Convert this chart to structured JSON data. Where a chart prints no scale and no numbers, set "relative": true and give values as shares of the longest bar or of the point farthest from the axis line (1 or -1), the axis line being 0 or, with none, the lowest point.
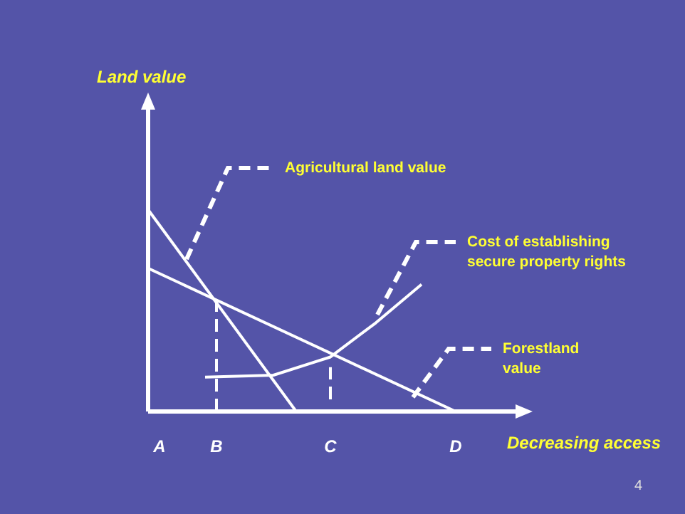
{
  "chart_data": {
    "type": "line",
    "relative": true,
    "xlabel": "Decreasing access",
    "marker": "none",
    "categories": [
      null,
      "A",
      null,
      null,
      null,
      null,
      "B",
      null,
      null,
      null,
      null,
      null,
      null,
      null,
      null,
      null,
      "C",
      null,
      null,
      null,
      null,
      null,
      null,
      null,
      null,
      null,
      null,
      "D",
      null,
      null,
      null,
      null,
      null
    ],
    "series": [
      {
        "color": "#ffffff",
        "values": [
          1,
          null,
          null,
          null,
          null,
          null,
          null,
          null,
          null,
          null,
          null,
          null,
          null,
          0,
          null,
          null,
          null,
          null,
          null,
          null,
          null,
          null,
          null,
          null,
          null,
          null,
          null,
          null,
          null,
          null,
          null,
          null,
          null
        ]
      },
      {
        "color": "#ffffff",
        "values": [
          0.71,
          null,
          null,
          null,
          null,
          null,
          null,
          null,
          null,
          null,
          null,
          null,
          null,
          null,
          null,
          null,
          null,
          null,
          null,
          null,
          null,
          null,
          null,
          null,
          null,
          null,
          null,
          0,
          null,
          null,
          null,
          null,
          null
        ]
      },
      {
        "color": "#ffffff",
        "values": [
          null,
          null,
          null,
          null,
          null,
          0.17,
          null,
          null,
          null,
          null,
          null,
          0.18,
          null,
          null,
          null,
          null,
          0.27,
          null,
          null,
          null,
          0.44,
          null,
          null,
          null,
          0.63,
          null,
          null,
          null,
          null,
          null,
          null,
          null,
          null
        ]
      },
      {
        "color": "#ffffff",
        "line_style": "dashed",
        "x": [
          "B",
          "B"
        ],
        "values": [
          0,
          0.55
        ]
      },
      {
        "color": "#ffffff",
        "line_style": "dashed",
        "x": [
          "C",
          "C"
        ],
        "values": [
          0.06,
          0.22
        ]
      }
    ],
    "annotations": [
      "Land value",
      "Agricultural land value",
      "Cost of establishing secure property rights",
      "Forestland value",
      "4"
    ]
  }
}
